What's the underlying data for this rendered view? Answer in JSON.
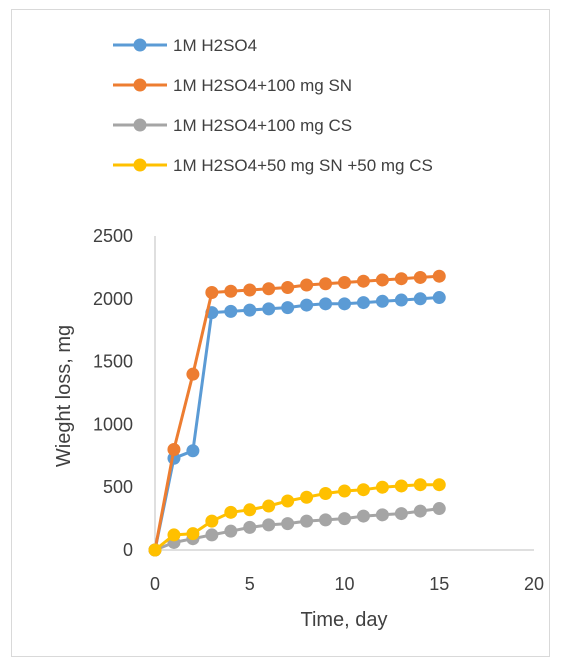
{
  "chart_data": {
    "type": "line",
    "title": "",
    "xlabel": "Time, day",
    "ylabel": "Wieght loss, mg",
    "xlim": [
      0,
      20
    ],
    "ylim": [
      0,
      2500
    ],
    "xticks": [
      "0",
      "5",
      "10",
      "15",
      "20"
    ],
    "yticks": [
      "0",
      "500",
      "1000",
      "1500",
      "2000",
      "2500"
    ],
    "grid": false,
    "legend_position": "top",
    "x": [
      0,
      1,
      2,
      3,
      4,
      5,
      6,
      7,
      8,
      9,
      10,
      11,
      12,
      13,
      14,
      15
    ],
    "series": [
      {
        "name": "1M H2SO4",
        "color": "#5b9bd5",
        "values": [
          0,
          730,
          790,
          1890,
          1900,
          1910,
          1920,
          1930,
          1950,
          1960,
          1960,
          1970,
          1980,
          1990,
          2000,
          2010
        ]
      },
      {
        "name": "1M H2SO4+100 mg SN",
        "color": "#ed7d31",
        "values": [
          0,
          800,
          1400,
          2050,
          2060,
          2070,
          2080,
          2090,
          2110,
          2120,
          2130,
          2140,
          2150,
          2160,
          2170,
          2180
        ]
      },
      {
        "name": "1M H2SO4+100 mg CS",
        "color": "#a5a5a5",
        "values": [
          0,
          60,
          90,
          120,
          150,
          180,
          200,
          210,
          230,
          240,
          250,
          270,
          280,
          290,
          310,
          330
        ]
      },
      {
        "name": "1M H2SO4+50 mg SN +50 mg CS",
        "color": "#ffc000",
        "values": [
          0,
          120,
          130,
          230,
          300,
          320,
          350,
          390,
          420,
          450,
          470,
          480,
          500,
          510,
          520,
          520
        ]
      }
    ]
  }
}
